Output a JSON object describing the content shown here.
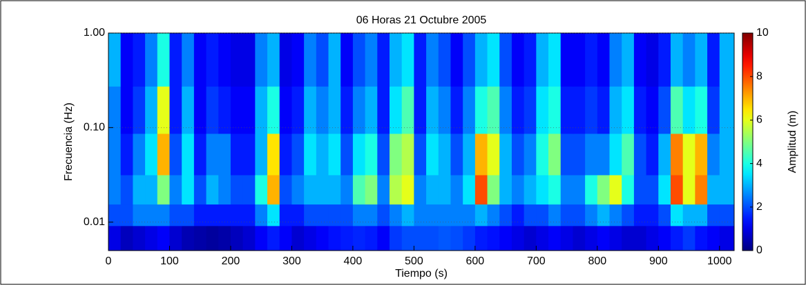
{
  "chart_data": {
    "type": "heatmap",
    "title": "06 Horas 21 Octubre 2005",
    "x_label": "Tiempo (s)",
    "y_label": "Frecuencia (Hz)",
    "colorbar_label": "Amplitud (m)",
    "colormap": "jet",
    "y_log": true,
    "grid": true,
    "xlim": [
      0,
      1024
    ],
    "xticks": [
      0,
      100,
      200,
      300,
      400,
      500,
      600,
      700,
      800,
      900,
      1000
    ],
    "ylim": [
      0.005,
      1
    ],
    "yticks": [
      0.01,
      {
        "value": 0.1,
        "label": "0.10"
      },
      {
        "value": 1,
        "label": "1.00"
      }
    ],
    "clim": [
      0,
      10
    ],
    "cticks": [
      0,
      2,
      4,
      6,
      8,
      10
    ],
    "x": [
      10,
      30,
      50,
      70,
      90,
      110,
      130,
      150,
      170,
      190,
      210,
      230,
      250,
      270,
      290,
      310,
      330,
      350,
      370,
      390,
      410,
      430,
      450,
      470,
      490,
      510,
      530,
      550,
      570,
      590,
      610,
      630,
      650,
      670,
      690,
      710,
      730,
      750,
      770,
      790,
      810,
      830,
      850,
      870,
      890,
      910,
      930,
      950,
      970,
      990,
      1010
    ],
    "y": [
      0.007,
      0.012,
      0.02,
      0.05,
      0.15,
      0.5
    ],
    "z": [
      [
        1,
        0.6,
        0.8,
        1,
        1.2,
        0.8,
        0.5,
        0.4,
        0.3,
        0.4,
        0.6,
        0.8,
        1.2,
        1.5,
        1.2,
        0.8,
        1,
        1.2,
        1.4,
        1.5,
        1.6,
        1.5,
        1.2,
        1.8,
        2,
        2,
        2,
        2.1,
        2,
        1.8,
        1.5,
        1.4,
        1.2,
        1,
        0.8,
        1,
        1.2,
        1,
        0.8,
        1,
        1.2,
        1,
        0.8,
        0.8,
        1,
        1.2,
        1.5,
        1.8,
        1.4,
        1.2,
        1
      ],
      [
        2,
        2,
        2.5,
        2.5,
        2.5,
        2,
        2,
        1.5,
        1.5,
        1.5,
        1.5,
        1.5,
        2.5,
        3.5,
        1.5,
        1.5,
        2,
        2,
        2,
        2,
        2.5,
        2.5,
        2,
        2.5,
        3,
        2.5,
        2.5,
        2.5,
        2.5,
        2.5,
        3,
        2.5,
        2,
        1.5,
        2,
        2,
        2.5,
        2,
        2,
        2.5,
        3,
        2.5,
        2,
        1.5,
        1.5,
        2,
        3.5,
        3,
        3,
        2,
        2
      ],
      [
        2.5,
        2,
        3,
        3,
        5,
        2.5,
        3.5,
        2,
        3,
        2.5,
        2,
        2,
        4,
        7,
        2,
        2.5,
        3,
        3,
        3,
        2.5,
        4.5,
        5,
        2.5,
        5.5,
        6,
        2.5,
        3,
        3,
        2.5,
        3.5,
        8,
        5,
        3,
        2.5,
        3,
        3.5,
        4,
        2.5,
        2.5,
        4,
        5,
        6,
        4,
        2,
        2,
        3.5,
        8,
        6,
        7.5,
        3,
        3
      ],
      [
        2.5,
        1.5,
        2.5,
        3.5,
        7,
        2,
        3.5,
        1.5,
        2.5,
        2.5,
        1.5,
        1.5,
        3,
        6.5,
        1.5,
        2,
        3.5,
        3,
        3.5,
        2,
        3.5,
        4,
        2,
        5,
        5.5,
        2,
        3.5,
        3,
        2,
        3,
        7,
        6,
        3,
        2,
        2.5,
        4,
        5,
        2,
        2,
        2.5,
        2.5,
        3.5,
        4.5,
        2,
        1.5,
        3,
        7.5,
        6,
        7,
        2.5,
        3
      ],
      [
        2.5,
        1.2,
        1.8,
        3,
        6,
        1.5,
        3,
        1.2,
        1.8,
        1.5,
        1.2,
        1.2,
        3,
        4,
        1.2,
        1.5,
        3,
        2.5,
        3,
        1.5,
        2.5,
        3,
        1.5,
        3.5,
        4.5,
        1.5,
        3,
        2.5,
        1.5,
        2.5,
        4,
        4.5,
        2.5,
        1.5,
        1.8,
        3.5,
        4,
        1.5,
        1.5,
        1.8,
        1.5,
        3,
        3.5,
        1.5,
        1.2,
        2,
        4.5,
        3.5,
        4,
        1.8,
        3
      ],
      [
        3,
        1.2,
        1.5,
        2.5,
        4,
        1.5,
        2.5,
        1.2,
        1.5,
        1.2,
        1,
        1,
        2.5,
        3,
        1,
        1.2,
        2.5,
        2,
        3,
        1.2,
        2,
        2.5,
        1.5,
        3,
        3.5,
        1.5,
        2.5,
        2,
        1.2,
        2,
        3,
        3.5,
        2,
        1.2,
        1.5,
        3,
        3.5,
        1.2,
        1.2,
        1.5,
        1.2,
        2.5,
        3,
        1.2,
        1,
        1.5,
        3,
        2.5,
        3,
        1.5,
        3
      ]
    ]
  }
}
